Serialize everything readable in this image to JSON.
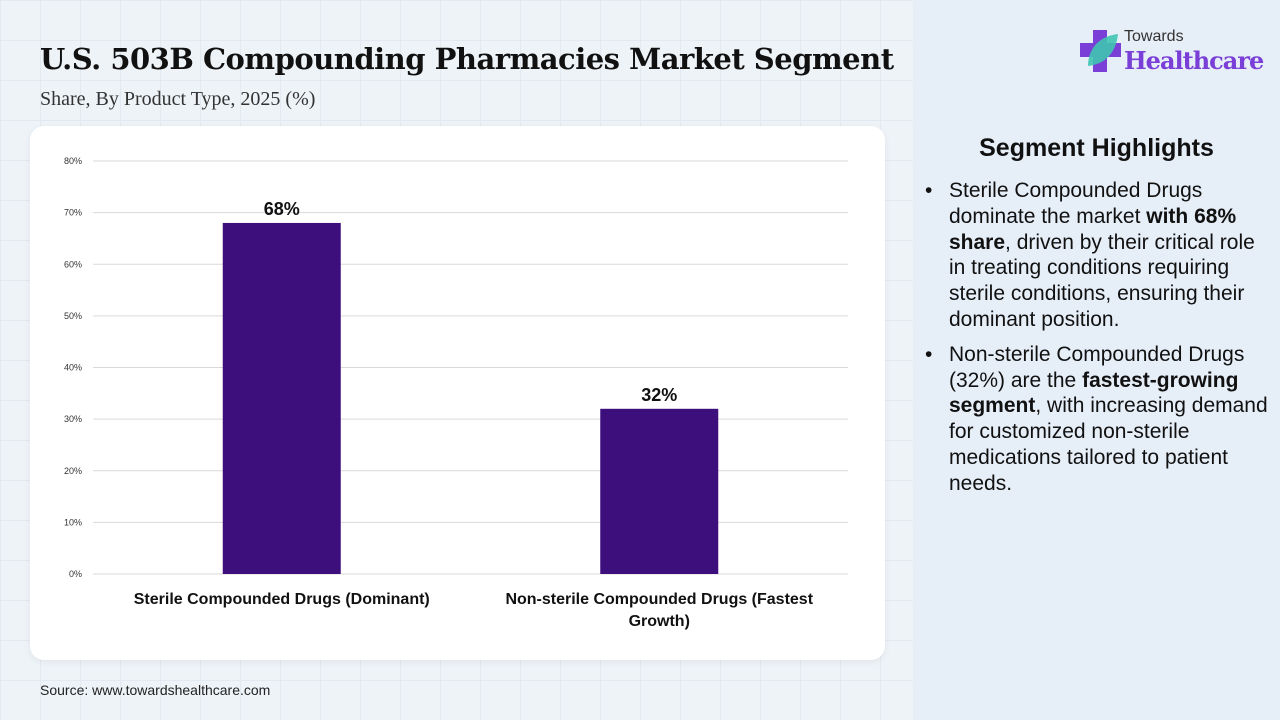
{
  "title": "U.S. 503B Compounding Pharmacies Market Segment",
  "subtitle": "Share, By Product Type, 2025 (%)",
  "source": "Source: www.towardshealthcare.com",
  "logo": {
    "line1": "Towards",
    "line2": "Healthcare"
  },
  "highlights": {
    "title": "Segment Highlights",
    "items": [
      {
        "parts": [
          "Sterile Compounded Drugs dominate the market ",
          {
            "b": "with 68% share"
          },
          ", driven by their critical role in treating conditions requiring sterile conditions, ensuring their dominant position."
        ]
      },
      {
        "parts": [
          "Non-sterile Compounded Drugs (32%) are the ",
          {
            "b": "fastest-growing segment"
          },
          ", with increasing demand for customized non-sterile medications tailored to patient needs."
        ]
      }
    ]
  },
  "colors": {
    "bar": "#3d0f7d",
    "grid": "#d9d9d9"
  },
  "chart_data": {
    "type": "bar",
    "categories": [
      "Sterile Compounded Drugs (Dominant)",
      "Non-sterile Compounded Drugs (Fastest Growth)"
    ],
    "values": [
      68,
      32
    ],
    "data_labels": [
      "68%",
      "32%"
    ],
    "ylim": [
      0,
      80
    ],
    "yticks": [
      0,
      10,
      20,
      30,
      40,
      50,
      60,
      70,
      80
    ],
    "ytick_labels": [
      "0%",
      "10%",
      "20%",
      "30%",
      "40%",
      "50%",
      "60%",
      "70%",
      "80%"
    ],
    "grid": true,
    "xlabel": "",
    "ylabel": ""
  }
}
